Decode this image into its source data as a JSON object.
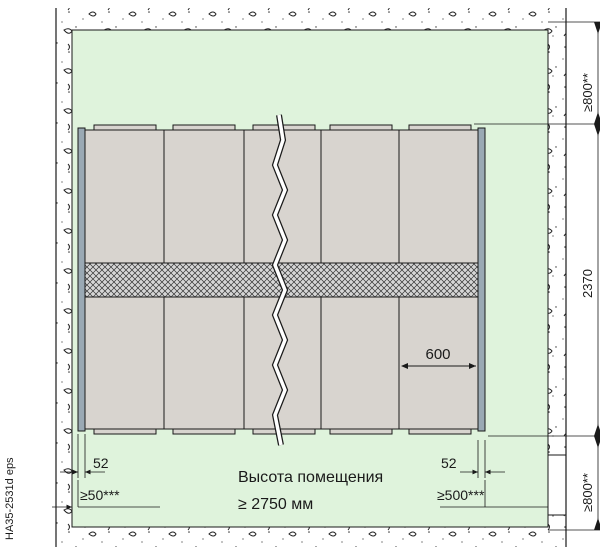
{
  "drawing_id": "HA35-2531d eps",
  "room_height_caption": "Высота помещения",
  "room_height_value": "≥ 2750 мм",
  "dimensions": {
    "top_clearance": "≥800**",
    "panel_height": "2370",
    "bottom_clearance": "≥800**",
    "panel_width": "600",
    "left_side_gap": "52",
    "right_side_gap": "52",
    "left_wall_clearance": "≥50***",
    "right_wall_clearance": "≥500***"
  },
  "colors": {
    "room_floor": "#dff3dc",
    "wall_fill": "#ffffff",
    "panel_fill": "#d8d4cf",
    "side_plate": "#9aa9b4",
    "hatch_band": "#cfcfcf",
    "line": "#1a1a1a"
  }
}
